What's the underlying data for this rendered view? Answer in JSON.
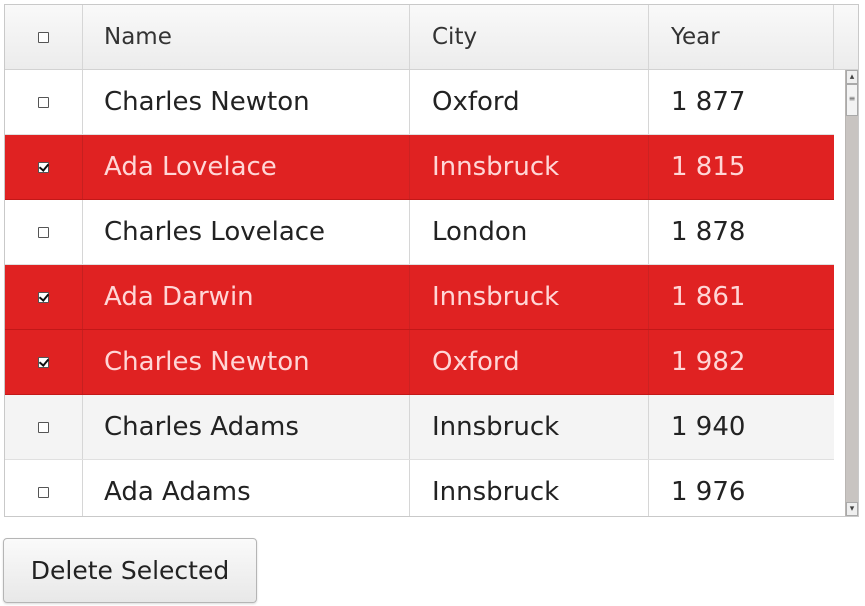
{
  "table": {
    "columns": {
      "name": "Name",
      "city": "City",
      "year": "Year"
    },
    "rows": [
      {
        "selected": false,
        "name": "Charles Newton",
        "city": "Oxford",
        "year": "1 877"
      },
      {
        "selected": true,
        "name": "Ada Lovelace",
        "city": "Innsbruck",
        "year": "1 815"
      },
      {
        "selected": false,
        "name": "Charles Lovelace",
        "city": "London",
        "year": "1 878"
      },
      {
        "selected": true,
        "name": "Ada Darwin",
        "city": "Innsbruck",
        "year": "1 861"
      },
      {
        "selected": true,
        "name": "Charles Newton",
        "city": "Oxford",
        "year": "1 982"
      },
      {
        "selected": false,
        "name": "Charles Adams",
        "city": "Innsbruck",
        "year": "1 940"
      },
      {
        "selected": false,
        "name": "Ada Adams",
        "city": "Innsbruck",
        "year": "1 976"
      }
    ]
  },
  "colors": {
    "selected_row": "#e02222",
    "selected_text": "#ffd6d6"
  },
  "actions": {
    "delete_label": "Delete Selected"
  }
}
